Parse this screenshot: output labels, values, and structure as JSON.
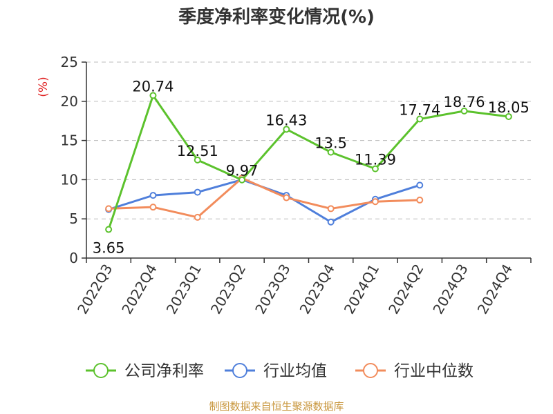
{
  "chart_data": {
    "type": "line",
    "title": "季度净利率变化情况(%)",
    "ylabel": "(%)",
    "xlabel": "",
    "ylim": [
      0,
      25
    ],
    "yticks": [
      0,
      5,
      10,
      15,
      20,
      25
    ],
    "grid": true,
    "legend_position": "bottom",
    "categories": [
      "2022Q3",
      "2022Q4",
      "2023Q1",
      "2023Q2",
      "2023Q3",
      "2023Q4",
      "2024Q1",
      "2024Q2",
      "2024Q3",
      "2024Q4"
    ],
    "series": [
      {
        "name": "公司净利率",
        "color": "#5cc22d",
        "values": [
          3.65,
          20.74,
          12.51,
          9.97,
          16.43,
          13.5,
          11.39,
          17.74,
          18.76,
          18.05
        ],
        "labels": [
          "3.65",
          "20.74",
          "12.51",
          "9.97",
          "16.43",
          "13.5",
          "11.39",
          "17.74",
          "18.76",
          "18.05"
        ]
      },
      {
        "name": "行业均值",
        "color": "#4f7fdb",
        "values": [
          6.2,
          8.0,
          8.4,
          10.0,
          8.0,
          4.6,
          7.5,
          9.3,
          null,
          null
        ]
      },
      {
        "name": "行业中位数",
        "color": "#f28c5c",
        "values": [
          6.3,
          6.5,
          5.2,
          10.2,
          7.7,
          6.3,
          7.2,
          7.4,
          null,
          null
        ]
      }
    ]
  },
  "source_note": "制图数据来自恒生聚源数据库"
}
